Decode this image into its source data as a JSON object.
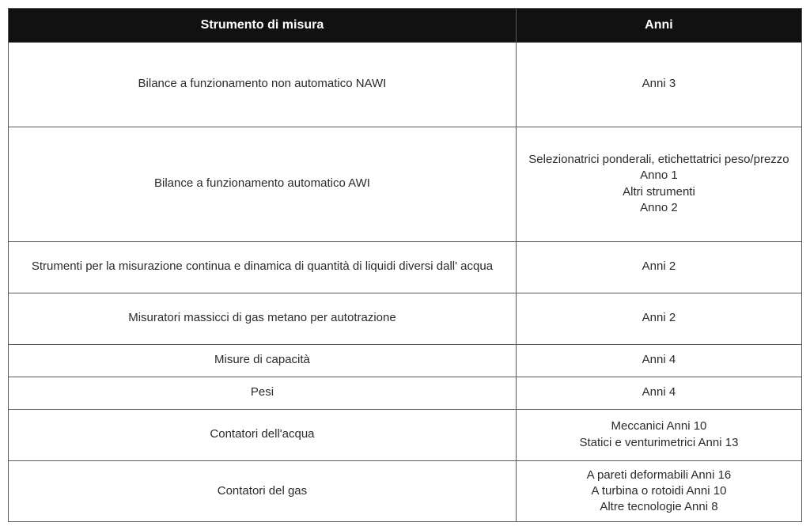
{
  "table": {
    "columns": [
      {
        "label": "Strumento di misura",
        "width_pct": 64
      },
      {
        "label": "Anni",
        "width_pct": 36
      }
    ],
    "header_bg": "#111111",
    "header_fg": "#ffffff",
    "border_color": "#5a5a5a",
    "body_fg": "#2b2b2b",
    "body_fontsize": 15,
    "header_fontsize": 16,
    "rows": [
      {
        "size": "xl",
        "instrument": "Bilance a funzionamento non automatico NAWI",
        "years": [
          "Anni 3"
        ]
      },
      {
        "size": "lg",
        "instrument": "Bilance a funzionamento automatico AWI",
        "years": [
          "Selezionatrici ponderali, etichettatrici peso/prezzo",
          "Anno 1",
          "Altri strumenti",
          "Anno 2"
        ]
      },
      {
        "size": "md",
        "instrument": "Strumenti per la misurazione continua e dinamica di quantità di liquidi diversi dall' acqua",
        "years": [
          "Anni 2"
        ]
      },
      {
        "size": "md",
        "instrument": "Misuratori massicci di gas metano per autotrazione",
        "years": [
          "Anni 2"
        ]
      },
      {
        "size": "sm",
        "instrument": "Misure di capacità",
        "years": [
          "Anni 4"
        ]
      },
      {
        "size": "sm",
        "instrument": "Pesi",
        "years": [
          "Anni 4"
        ]
      },
      {
        "size": "md",
        "instrument": "Contatori dell'acqua",
        "years": [
          "Meccanici Anni 10",
          "Statici e venturimetrici Anni 13"
        ]
      },
      {
        "size": "md",
        "instrument": "Contatori del gas",
        "years": [
          "A pareti deformabili Anni 16",
          "A turbina o rotoidi Anni 10",
          "Altre tecnologie Anni 8"
        ]
      }
    ]
  }
}
